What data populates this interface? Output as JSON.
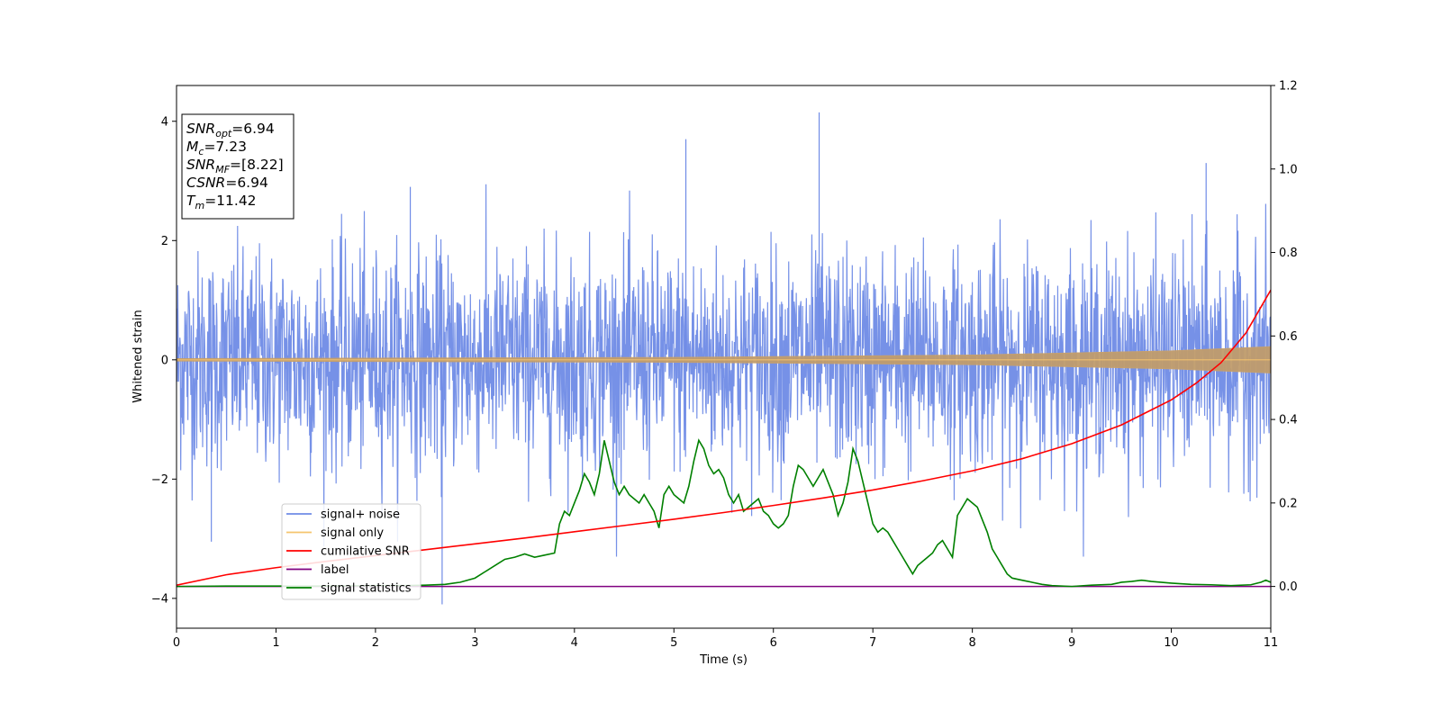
{
  "chart_data": {
    "type": "line",
    "xlabel": "Time (s)",
    "ylabel": "Whitened strain",
    "xlim": [
      0,
      11
    ],
    "ylim": [
      -4.5,
      4.6
    ],
    "y2lim": [
      -0.1,
      1.2
    ],
    "x_ticks": [
      "0",
      "1",
      "2",
      "3",
      "4",
      "5",
      "6",
      "7",
      "8",
      "9",
      "10",
      "11"
    ],
    "y_ticks": [
      "−4",
      "−2",
      "0",
      "2",
      "4"
    ],
    "y2_ticks": [
      "0.0",
      "0.2",
      "0.4",
      "0.6",
      "0.8",
      "1.0",
      "1.2"
    ],
    "grid": false,
    "legend_position": "lower-left",
    "legend": [
      {
        "label": "signal+ noise",
        "color": "#6f8be6"
      },
      {
        "label": "signal only",
        "color": "#f5c46e"
      },
      {
        "label": "cumilative SNR",
        "color": "#ff0000"
      },
      {
        "label": "label",
        "color": "#800080"
      },
      {
        "label": "signal statistics",
        "color": "#008000"
      }
    ],
    "annotation": [
      {
        "sym": "SNR",
        "sub": "opt",
        "rest": "=6.94"
      },
      {
        "sym": "M",
        "sub": "c",
        "rest": "=7.23"
      },
      {
        "sym": "SNR",
        "sub": "MF",
        "rest": "=[8.22]"
      },
      {
        "sym": "CSNR",
        "sub": "",
        "rest": "=6.94"
      },
      {
        "sym": "T",
        "sub": "m",
        "rest": "=11.42"
      }
    ],
    "series": [
      {
        "name": "signal+ noise",
        "axis": "left",
        "color": "#6f8be6",
        "x_range": [
          0,
          11
        ],
        "typical_amplitude": 1.45,
        "max": 4.15,
        "min": -4.1
      },
      {
        "name": "signal only",
        "axis": "left",
        "color": "#f5c46e",
        "x_range": [
          0,
          11
        ],
        "envelope": {
          "x": [
            0,
            5,
            8,
            10,
            11
          ],
          "y": [
            0.02,
            0.04,
            0.08,
            0.15,
            0.22
          ]
        }
      },
      {
        "name": "cumilative SNR",
        "axis": "right",
        "color": "#ff0000",
        "x": [
          0,
          0.5,
          1,
          1.5,
          2,
          2.5,
          3,
          3.5,
          4,
          4.5,
          5,
          5.5,
          6,
          6.5,
          7,
          7.5,
          8,
          8.5,
          9,
          9.5,
          10,
          10.25,
          10.5,
          10.75,
          11
        ],
        "values": [
          0.003,
          0.028,
          0.045,
          0.06,
          0.074,
          0.088,
          0.102,
          0.116,
          0.131,
          0.146,
          0.161,
          0.177,
          0.194,
          0.212,
          0.231,
          0.253,
          0.277,
          0.306,
          0.342,
          0.387,
          0.447,
          0.487,
          0.536,
          0.607,
          0.71
        ]
      },
      {
        "name": "label",
        "axis": "right",
        "color": "#800080",
        "x": [
          0,
          11
        ],
        "values": [
          0,
          0
        ]
      },
      {
        "name": "signal statistics",
        "axis": "right",
        "color": "#008000",
        "x": [
          0,
          0.5,
          1,
          1.5,
          2,
          2.3,
          2.5,
          2.7,
          2.85,
          3.0,
          3.1,
          3.2,
          3.3,
          3.4,
          3.5,
          3.6,
          3.7,
          3.8,
          3.85,
          3.9,
          3.95,
          4.0,
          4.05,
          4.1,
          4.15,
          4.2,
          4.25,
          4.3,
          4.35,
          4.4,
          4.45,
          4.5,
          4.55,
          4.6,
          4.65,
          4.7,
          4.75,
          4.8,
          4.85,
          4.9,
          4.95,
          5.0,
          5.05,
          5.1,
          5.15,
          5.2,
          5.25,
          5.3,
          5.35,
          5.4,
          5.45,
          5.5,
          5.55,
          5.6,
          5.65,
          5.7,
          5.75,
          5.8,
          5.85,
          5.9,
          5.95,
          6.0,
          6.05,
          6.1,
          6.15,
          6.2,
          6.25,
          6.3,
          6.35,
          6.4,
          6.45,
          6.5,
          6.55,
          6.6,
          6.65,
          6.7,
          6.75,
          6.8,
          6.85,
          6.9,
          6.95,
          7.0,
          7.05,
          7.1,
          7.15,
          7.2,
          7.25,
          7.3,
          7.35,
          7.4,
          7.45,
          7.5,
          7.55,
          7.6,
          7.65,
          7.7,
          7.75,
          7.8,
          7.85,
          7.9,
          7.95,
          8.0,
          8.05,
          8.1,
          8.15,
          8.2,
          8.25,
          8.3,
          8.35,
          8.4,
          8.5,
          8.6,
          8.7,
          8.8,
          9.0,
          9.2,
          9.4,
          9.5,
          9.6,
          9.7,
          9.8,
          10.0,
          10.2,
          10.4,
          10.6,
          10.8,
          10.9,
          10.95,
          11.0
        ],
        "values": [
          0.0,
          0.001,
          0.001,
          0.001,
          0.002,
          0.002,
          0.003,
          0.005,
          0.01,
          0.02,
          0.035,
          0.05,
          0.065,
          0.07,
          0.078,
          0.07,
          0.075,
          0.08,
          0.15,
          0.18,
          0.17,
          0.2,
          0.23,
          0.27,
          0.25,
          0.22,
          0.27,
          0.35,
          0.3,
          0.25,
          0.22,
          0.24,
          0.22,
          0.21,
          0.2,
          0.22,
          0.2,
          0.18,
          0.14,
          0.22,
          0.24,
          0.22,
          0.21,
          0.2,
          0.24,
          0.3,
          0.35,
          0.33,
          0.29,
          0.27,
          0.28,
          0.26,
          0.22,
          0.2,
          0.22,
          0.18,
          0.19,
          0.2,
          0.21,
          0.18,
          0.17,
          0.15,
          0.14,
          0.15,
          0.17,
          0.24,
          0.29,
          0.28,
          0.26,
          0.24,
          0.26,
          0.28,
          0.25,
          0.22,
          0.17,
          0.2,
          0.25,
          0.33,
          0.3,
          0.25,
          0.2,
          0.15,
          0.13,
          0.14,
          0.13,
          0.11,
          0.09,
          0.07,
          0.05,
          0.03,
          0.05,
          0.06,
          0.07,
          0.08,
          0.1,
          0.11,
          0.09,
          0.07,
          0.17,
          0.19,
          0.21,
          0.2,
          0.19,
          0.16,
          0.13,
          0.09,
          0.07,
          0.05,
          0.03,
          0.02,
          0.015,
          0.01,
          0.005,
          0.002,
          0.0,
          0.003,
          0.005,
          0.01,
          0.012,
          0.015,
          0.012,
          0.008,
          0.005,
          0.004,
          0.002,
          0.004,
          0.01,
          0.015,
          0.01
        ]
      }
    ]
  }
}
